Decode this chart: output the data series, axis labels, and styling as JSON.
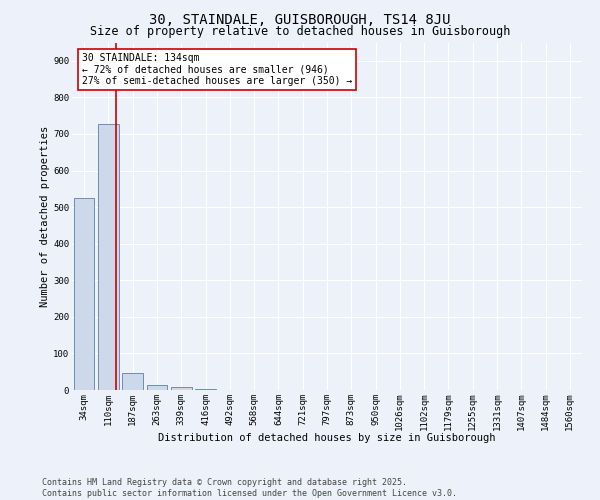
{
  "title": "30, STAINDALE, GUISBOROUGH, TS14 8JU",
  "subtitle": "Size of property relative to detached houses in Guisborough",
  "xlabel": "Distribution of detached houses by size in Guisborough",
  "ylabel": "Number of detached properties",
  "categories": [
    "34sqm",
    "110sqm",
    "187sqm",
    "263sqm",
    "339sqm",
    "416sqm",
    "492sqm",
    "568sqm",
    "644sqm",
    "721sqm",
    "797sqm",
    "873sqm",
    "950sqm",
    "1026sqm",
    "1102sqm",
    "1179sqm",
    "1255sqm",
    "1331sqm",
    "1407sqm",
    "1484sqm",
    "1560sqm"
  ],
  "values": [
    525,
    727,
    47,
    15,
    8,
    2,
    1,
    0,
    0,
    0,
    0,
    0,
    0,
    0,
    0,
    0,
    0,
    0,
    0,
    0,
    0
  ],
  "bar_color": "#cdd8ea",
  "bar_edge_color": "#5b7faa",
  "highlight_line_color": "#cc0000",
  "annotation_text": "30 STAINDALE: 134sqm\n← 72% of detached houses are smaller (946)\n27% of semi-detached houses are larger (350) →",
  "annotation_box_color": "#cc0000",
  "ylim": [
    0,
    950
  ],
  "yticks": [
    0,
    100,
    200,
    300,
    400,
    500,
    600,
    700,
    800,
    900
  ],
  "background_color": "#edf2fa",
  "grid_color": "#ffffff",
  "footer": "Contains HM Land Registry data © Crown copyright and database right 2025.\nContains public sector information licensed under the Open Government Licence v3.0.",
  "title_fontsize": 10,
  "subtitle_fontsize": 8.5,
  "axis_label_fontsize": 7.5,
  "tick_fontsize": 6.5,
  "annotation_fontsize": 7,
  "footer_fontsize": 6
}
